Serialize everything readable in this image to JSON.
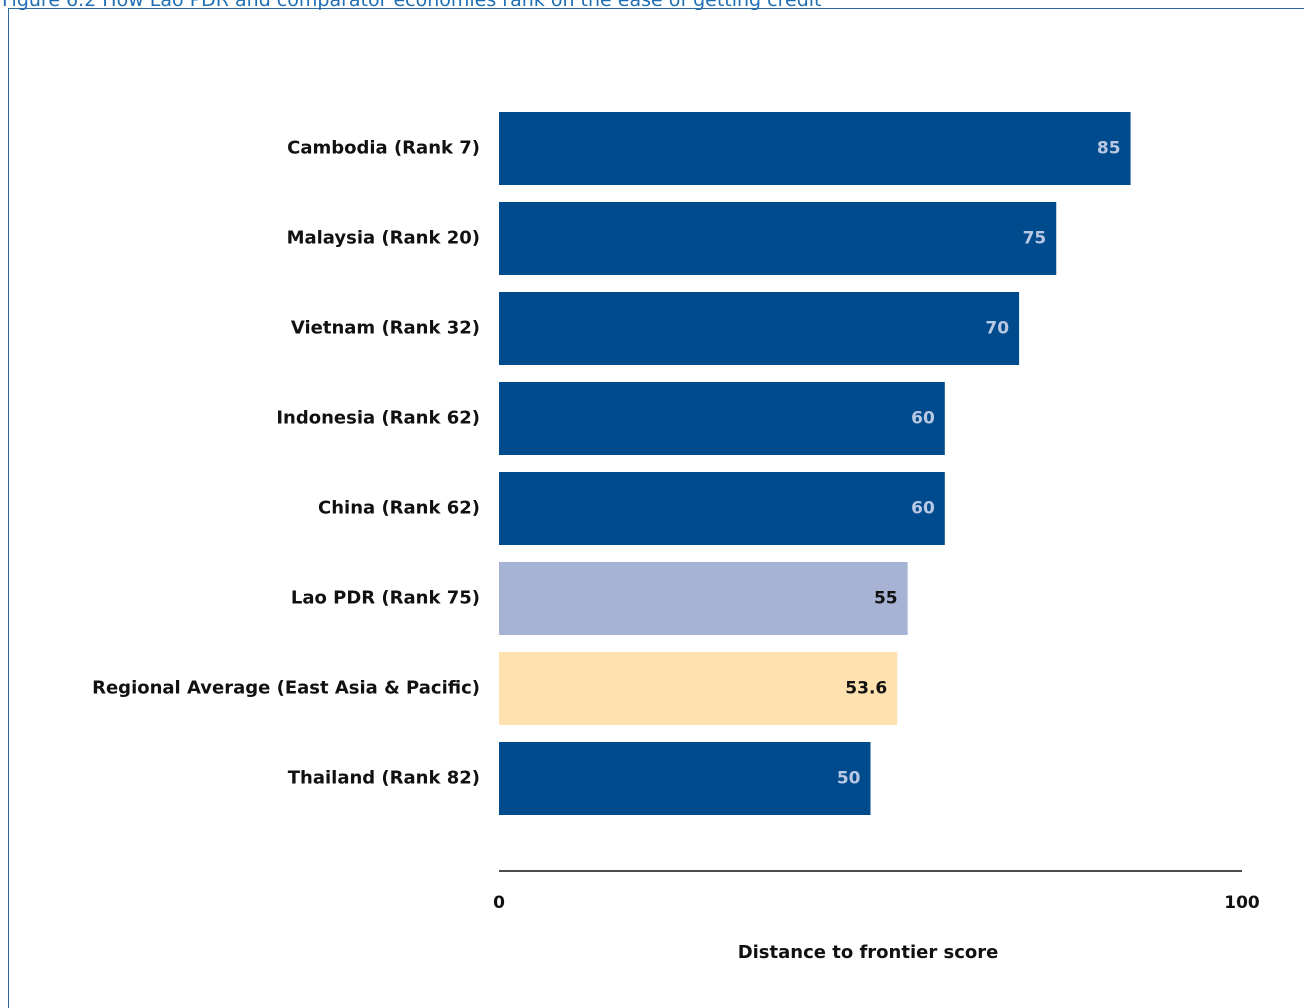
{
  "figure": {
    "title": "Figure 6.2 How Lao PDR and comparator economies rank on the ease of getting credit"
  },
  "colors": {
    "default_bar": "#004b8d",
    "highlight_bar": "#a6b3d4",
    "average_bar": "#fde2b0",
    "default_label": "#b9c8e3",
    "highlight_label": "#111111",
    "frame": "#2c6aa6",
    "title": "#1f6fb5"
  },
  "chart_data": {
    "type": "bar",
    "orientation": "horizontal",
    "categories": [
      "Cambodia (Rank 7)",
      "Malaysia (Rank 20)",
      "Vietnam (Rank 32)",
      "Indonesia (Rank 62)",
      "China (Rank 62)",
      "Lao PDR (Rank 75)",
      "Regional Average (East Asia & Pacific)",
      "Thailand (Rank 82)"
    ],
    "values": [
      85,
      75,
      70,
      60,
      60,
      55,
      53.6,
      50
    ],
    "value_labels": [
      "85",
      "75",
      "70",
      "60",
      "60",
      "55",
      "53.6",
      "50"
    ],
    "highlight": [
      "default",
      "default",
      "default",
      "default",
      "default",
      "highlight",
      "average",
      "default"
    ],
    "xlim": [
      0,
      100
    ],
    "x_ticks": [
      "0",
      "100"
    ],
    "xlabel": "Distance to frontier score",
    "ylabel": "",
    "grid": false,
    "legend": "none"
  }
}
